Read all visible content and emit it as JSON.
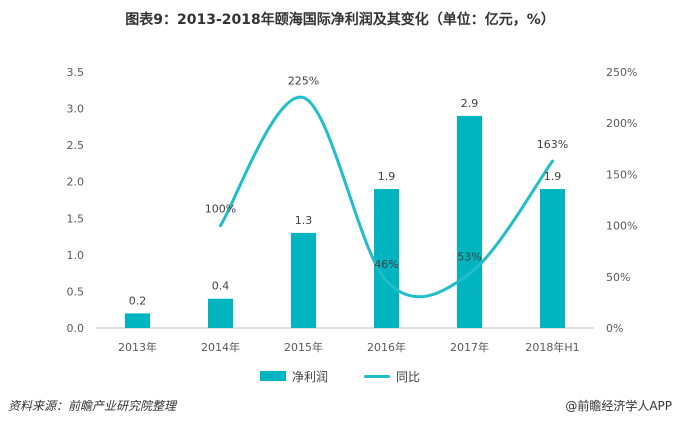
{
  "title": "图表9：2013-2018年颐海国际净利润及其变化（单位：亿元，%）",
  "source": "资料来源：前瞻产业研究院整理",
  "brand": "@前瞻经济学人APP",
  "chart_data": {
    "type": "bar",
    "categories": [
      "2013年",
      "2014年",
      "2015年",
      "2016年",
      "2017年",
      "2018年H1"
    ],
    "series": [
      {
        "name": "净利润",
        "type": "bar",
        "axis": "left",
        "values": [
          0.2,
          0.4,
          1.3,
          1.9,
          2.9,
          1.9
        ],
        "labels": [
          "0.2",
          "0.4",
          "1.3",
          "1.9",
          "2.9",
          "1.9"
        ]
      },
      {
        "name": "同比",
        "type": "line",
        "axis": "right",
        "values": [
          null,
          100,
          225,
          46,
          53,
          163
        ],
        "labels": [
          "",
          "100%",
          "225%",
          "46%",
          "53%",
          "163%"
        ]
      }
    ],
    "y_left": {
      "min": 0,
      "max": 3.5,
      "ticks": [
        "0.0",
        "0.5",
        "1.0",
        "1.5",
        "2.0",
        "2.5",
        "3.0",
        "3.5"
      ]
    },
    "y_right": {
      "min": 0,
      "max": 250,
      "ticks": [
        "0%",
        "50%",
        "100%",
        "150%",
        "200%",
        "250%"
      ]
    },
    "grid": false,
    "legend_position": "bottom",
    "colors": {
      "bar": "#00b5bf",
      "line": "#1fbec9",
      "axis": "#bfbfbf",
      "text": "#595959"
    }
  }
}
